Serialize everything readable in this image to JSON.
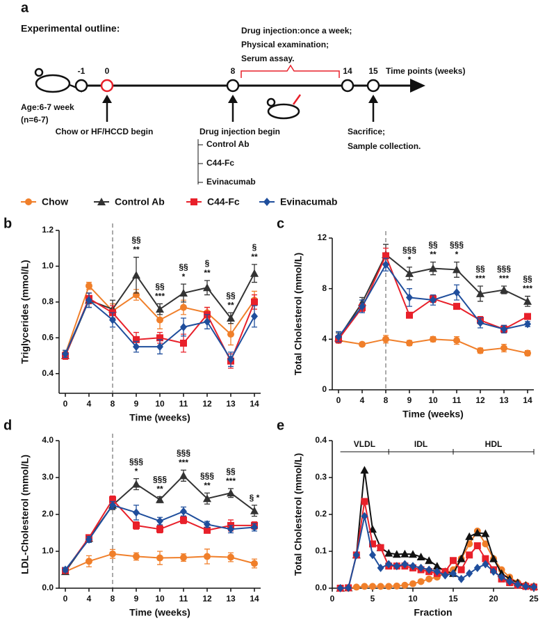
{
  "outline": {
    "panel": "a",
    "title": "Experimental outline:",
    "age": "Age:6-7 week",
    "n": "(n=6-7)",
    "timepoints": [
      "-1",
      "0",
      "8",
      "14",
      "15"
    ],
    "axis_label": "Time points (weeks)",
    "schedule": [
      "Drug injection:once a week;",
      "Physical examination;",
      "Serum assay."
    ],
    "start": "Chow or HF/HCCD begin",
    "injection": "Drug injection begin",
    "arms": [
      "Control Ab",
      "C44-Fc",
      "Evinacumab"
    ],
    "end": [
      "Sacrifice;",
      "Sample collection."
    ]
  },
  "chart_data": [
    {
      "type": "line",
      "panel": "b",
      "ylabel": "Triglycerides (mmol/L)",
      "xlabel": "Time (weeks)",
      "categories": [
        "0",
        "4",
        "8",
        "9",
        "10",
        "11",
        "12",
        "13",
        "14"
      ],
      "vline": "8",
      "ylim": [
        0.29,
        1.2
      ],
      "yticks": [
        0.4,
        0.6,
        0.8,
        {
          "value": 1,
          "label": "1.0"
        },
        1.2
      ],
      "series": [
        {
          "name": "Chow",
          "color": "#f07f2a",
          "marker": "circle",
          "values": [
            0.51,
            0.89,
            0.75,
            0.84,
            0.7,
            0.77,
            0.74,
            0.62,
            0.81
          ],
          "errors": [
            0.02,
            0.02,
            0.04,
            0.03,
            0.05,
            0.04,
            0.03,
            0.06,
            0.05
          ]
        },
        {
          "name": "Control Ab",
          "color": "#333333",
          "marker": "triangle",
          "values": [
            0.5,
            0.81,
            0.76,
            0.95,
            0.76,
            0.85,
            0.88,
            0.71,
            0.96
          ],
          "errors": [
            0.02,
            0.04,
            0.05,
            0.1,
            0.03,
            0.05,
            0.04,
            0.03,
            0.05
          ]
        },
        {
          "name": "C44-Fc",
          "color": "#e8202a",
          "marker": "square",
          "values": [
            0.5,
            0.82,
            0.74,
            0.59,
            0.6,
            0.57,
            0.73,
            0.47,
            0.8
          ],
          "errors": [
            0.02,
            0.03,
            0.04,
            0.04,
            0.03,
            0.05,
            0.04,
            0.04,
            0.04
          ]
        },
        {
          "name": "Evinacumab",
          "color": "#1f4e9c",
          "marker": "diamond",
          "values": [
            0.51,
            0.81,
            0.7,
            0.55,
            0.55,
            0.66,
            0.69,
            0.48,
            0.72
          ],
          "errors": [
            0.02,
            0.04,
            0.04,
            0.03,
            0.04,
            0.05,
            0.04,
            0.04,
            0.06
          ]
        }
      ],
      "annotations": [
        {
          "x": "9",
          "lines": [
            "§§",
            "**"
          ]
        },
        {
          "x": "10",
          "lines": [
            "§§",
            "***"
          ]
        },
        {
          "x": "11",
          "lines": [
            "§§",
            "*"
          ]
        },
        {
          "x": "12",
          "lines": [
            "§",
            "**"
          ]
        },
        {
          "x": "13",
          "lines": [
            "§§",
            "**"
          ]
        },
        {
          "x": "14",
          "lines": [
            "§",
            "**"
          ]
        }
      ]
    },
    {
      "type": "line",
      "panel": "c",
      "ylabel": "Total Cholesterol (mmol/L)",
      "xlabel": "Time (weeks)",
      "categories": [
        "0",
        "4",
        "8",
        "9",
        "10",
        "11",
        "12",
        "13",
        "14"
      ],
      "vline": "8",
      "ylim": [
        0,
        12
      ],
      "yticks": [
        0,
        4,
        8,
        12
      ],
      "series": [
        {
          "color": "#f07f2a",
          "marker": "circle",
          "values": [
            3.9,
            3.6,
            4.0,
            3.7,
            4.0,
            3.9,
            3.1,
            3.3,
            2.9
          ],
          "errors": [
            0.2,
            0.15,
            0.3,
            0.2,
            0.2,
            0.3,
            0.2,
            0.3,
            0.2
          ]
        },
        {
          "color": "#333333",
          "marker": "triangle",
          "values": [
            4.1,
            6.9,
            10.7,
            9.2,
            9.6,
            9.5,
            7.6,
            7.9,
            7.0
          ],
          "errors": [
            0.4,
            0.4,
            0.8,
            0.5,
            0.5,
            0.6,
            0.6,
            0.3,
            0.4
          ]
        },
        {
          "color": "#e8202a",
          "marker": "square",
          "values": [
            4.0,
            6.5,
            10.6,
            5.9,
            7.2,
            6.6,
            5.5,
            4.8,
            5.8
          ],
          "errors": [
            0.3,
            0.3,
            0.6,
            0.2,
            0.3,
            0.2,
            0.3,
            0.3,
            0.2
          ]
        },
        {
          "color": "#1f4e9c",
          "marker": "diamond",
          "values": [
            4.2,
            6.6,
            9.9,
            7.3,
            7.1,
            7.7,
            5.3,
            4.8,
            5.2
          ],
          "errors": [
            0.4,
            0.5,
            0.5,
            0.7,
            0.4,
            0.6,
            0.4,
            0.3,
            0.2
          ]
        }
      ],
      "annotations": [
        {
          "x": "9",
          "lines": [
            "§§§",
            "*"
          ]
        },
        {
          "x": "10",
          "lines": [
            "§§",
            "**"
          ]
        },
        {
          "x": "11",
          "lines": [
            "§§§",
            "*"
          ]
        },
        {
          "x": "12",
          "lines": [
            "§§",
            "***"
          ]
        },
        {
          "x": "13",
          "lines": [
            "§§§",
            "***"
          ]
        },
        {
          "x": "14",
          "lines": [
            "§§",
            "***"
          ]
        }
      ]
    },
    {
      "type": "line",
      "panel": "d",
      "ylabel": "LDL-Cholesterol (mmol/L)",
      "xlabel": "Time (weeks)",
      "categories": [
        "0",
        "4",
        "8",
        "9",
        "10",
        "11",
        "12",
        "13",
        "14"
      ],
      "vline": "8",
      "ylim": [
        0,
        4
      ],
      "yticks": [
        {
          "value": 0,
          "label": "0.0"
        },
        {
          "value": 1,
          "label": "1.0"
        },
        {
          "value": 2,
          "label": "2.0"
        },
        {
          "value": 3,
          "label": "3.0"
        },
        {
          "value": 4,
          "label": "4.0"
        }
      ],
      "series": [
        {
          "color": "#f07f2a",
          "marker": "circle",
          "values": [
            0.45,
            0.73,
            0.93,
            0.86,
            0.82,
            0.83,
            0.86,
            0.84,
            0.67
          ],
          "errors": [
            0.08,
            0.15,
            0.12,
            0.1,
            0.18,
            0.1,
            0.2,
            0.12,
            0.12
          ]
        },
        {
          "color": "#333333",
          "marker": "triangle",
          "values": [
            0.45,
            1.35,
            2.25,
            2.82,
            2.4,
            3.05,
            2.43,
            2.58,
            2.1
          ],
          "errors": [
            0.08,
            0.1,
            0.12,
            0.15,
            0.08,
            0.15,
            0.15,
            0.12,
            0.15
          ]
        },
        {
          "color": "#e8202a",
          "marker": "square",
          "values": [
            0.48,
            1.37,
            2.4,
            1.7,
            1.6,
            1.85,
            1.57,
            1.7,
            1.7
          ],
          "errors": [
            0.06,
            0.08,
            0.1,
            0.1,
            0.1,
            0.1,
            0.08,
            0.15,
            0.1
          ]
        },
        {
          "color": "#1f4e9c",
          "marker": "diamond",
          "values": [
            0.5,
            1.32,
            2.25,
            2.05,
            1.82,
            2.08,
            1.73,
            1.6,
            1.65
          ],
          "errors": [
            0.06,
            0.08,
            0.1,
            0.2,
            0.1,
            0.12,
            0.08,
            0.1,
            0.1
          ]
        }
      ],
      "annotations": [
        {
          "x": "9",
          "lines": [
            "§§§",
            "*"
          ]
        },
        {
          "x": "10",
          "lines": [
            "§§§",
            "**"
          ]
        },
        {
          "x": "11",
          "lines": [
            "§§§",
            "***"
          ]
        },
        {
          "x": "12",
          "lines": [
            "§§§",
            "**"
          ]
        },
        {
          "x": "13",
          "lines": [
            "§§",
            "***"
          ]
        },
        {
          "x": "14",
          "lines": [
            "§ *"
          ]
        }
      ]
    },
    {
      "type": "line",
      "panel": "e",
      "ylabel": "Total Cholesterol (mmol/L)",
      "xlabel": "Fraction",
      "x": [
        1,
        2,
        3,
        4,
        5,
        6,
        7,
        8,
        9,
        10,
        11,
        12,
        13,
        14,
        15,
        16,
        17,
        18,
        19,
        20,
        21,
        22,
        23,
        24,
        25
      ],
      "xlim": [
        0,
        25
      ],
      "xticks": [
        0,
        5,
        10,
        15,
        20,
        25
      ],
      "ylim": [
        0,
        0.4
      ],
      "yticks": [
        {
          "value": 0,
          "label": "0.0"
        },
        0.1,
        0.2,
        0.3,
        0.4
      ],
      "regions": [
        {
          "label": "VLDL",
          "x": [
            1,
            7
          ]
        },
        {
          "label": "IDL",
          "x": [
            7,
            15
          ]
        },
        {
          "label": "HDL",
          "x": [
            15,
            25
          ]
        }
      ],
      "series": [
        {
          "color": "#f07f2a",
          "marker": "circle",
          "values": [
            0,
            0,
            0.003,
            0.005,
            0.005,
            0.005,
            0.005,
            0.006,
            0.008,
            0.012,
            0.018,
            0.025,
            0.03,
            0.04,
            0.05,
            0.08,
            0.12,
            0.155,
            0.12,
            0.08,
            0.05,
            0.03,
            0.015,
            0.008,
            0.005
          ]
        },
        {
          "color": "#111111",
          "marker": "triangle",
          "values": [
            0,
            0.001,
            0.09,
            0.32,
            0.16,
            0.11,
            0.095,
            0.092,
            0.093,
            0.092,
            0.085,
            0.075,
            0.06,
            0.045,
            0.04,
            0.08,
            0.14,
            0.15,
            0.148,
            0.08,
            0.04,
            0.025,
            0.015,
            0.008,
            0.005
          ]
        },
        {
          "color": "#e8202a",
          "marker": "square",
          "values": [
            0,
            0.001,
            0.09,
            0.235,
            0.12,
            0.11,
            0.06,
            0.06,
            0.06,
            0.055,
            0.05,
            0.045,
            0.04,
            0.045,
            0.075,
            0.05,
            0.09,
            0.115,
            0.08,
            0.05,
            0.025,
            0.015,
            0.008,
            0.005,
            0.003
          ]
        },
        {
          "color": "#1f4e9c",
          "marker": "diamond",
          "values": [
            0,
            0.001,
            0.09,
            0.195,
            0.09,
            0.055,
            0.065,
            0.06,
            0.065,
            0.06,
            0.055,
            0.05,
            0.045,
            0.035,
            0.04,
            0.025,
            0.04,
            0.055,
            0.065,
            0.045,
            0.03,
            0.018,
            0.01,
            0.005,
            0.003
          ]
        }
      ]
    }
  ]
}
